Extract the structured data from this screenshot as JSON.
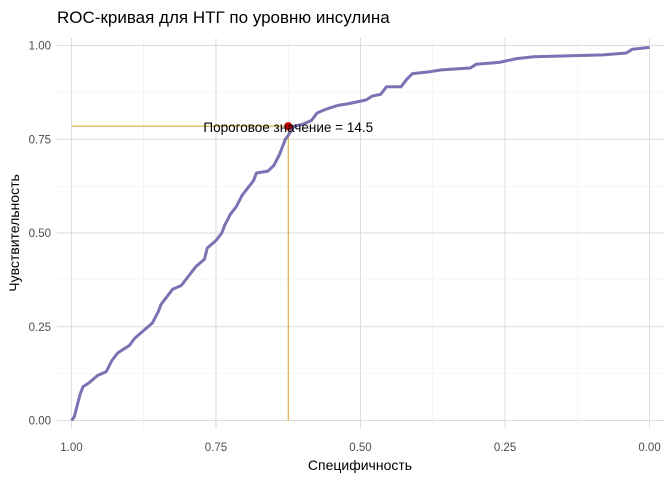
{
  "chart_data": {
    "type": "line",
    "title": "ROC-кривая для  НТГ по уровню инсулина",
    "xlabel": "Специфичность",
    "ylabel": "Чувствительность",
    "x_reversed": true,
    "xlim": [
      1.025,
      -0.025
    ],
    "ylim": [
      -0.02,
      1.02
    ],
    "x_ticks": [
      1.0,
      0.75,
      0.5,
      0.25,
      0.0
    ],
    "x_tick_labels": [
      "1.00",
      "0.75",
      "0.50",
      "0.25",
      "0.00"
    ],
    "y_ticks": [
      0.0,
      0.25,
      0.5,
      0.75,
      1.0
    ],
    "y_tick_labels": [
      "0.00",
      "0.25",
      "0.50",
      "0.75",
      "1.00"
    ],
    "grid": true,
    "legend": "none",
    "series": [
      {
        "color": "#7b72b4",
        "points": [
          [
            1.0,
            0.0
          ],
          [
            0.995,
            0.01
          ],
          [
            0.99,
            0.04
          ],
          [
            0.985,
            0.07
          ],
          [
            0.98,
            0.09
          ],
          [
            0.97,
            0.1
          ],
          [
            0.955,
            0.12
          ],
          [
            0.94,
            0.13
          ],
          [
            0.93,
            0.16
          ],
          [
            0.92,
            0.18
          ],
          [
            0.9,
            0.2
          ],
          [
            0.89,
            0.22
          ],
          [
            0.875,
            0.24
          ],
          [
            0.86,
            0.26
          ],
          [
            0.85,
            0.29
          ],
          [
            0.845,
            0.31
          ],
          [
            0.835,
            0.33
          ],
          [
            0.825,
            0.35
          ],
          [
            0.81,
            0.36
          ],
          [
            0.8,
            0.38
          ],
          [
            0.785,
            0.41
          ],
          [
            0.77,
            0.43
          ],
          [
            0.765,
            0.46
          ],
          [
            0.75,
            0.48
          ],
          [
            0.74,
            0.5
          ],
          [
            0.735,
            0.52
          ],
          [
            0.725,
            0.55
          ],
          [
            0.715,
            0.57
          ],
          [
            0.705,
            0.6
          ],
          [
            0.695,
            0.62
          ],
          [
            0.685,
            0.64
          ],
          [
            0.68,
            0.66
          ],
          [
            0.66,
            0.665
          ],
          [
            0.65,
            0.68
          ],
          [
            0.64,
            0.71
          ],
          [
            0.63,
            0.75
          ],
          [
            0.625,
            0.76
          ],
          [
            0.615,
            0.785
          ],
          [
            0.6,
            0.79
          ],
          [
            0.585,
            0.8
          ],
          [
            0.575,
            0.82
          ],
          [
            0.56,
            0.83
          ],
          [
            0.54,
            0.84
          ],
          [
            0.52,
            0.845
          ],
          [
            0.49,
            0.855
          ],
          [
            0.48,
            0.865
          ],
          [
            0.465,
            0.87
          ],
          [
            0.455,
            0.89
          ],
          [
            0.43,
            0.89
          ],
          [
            0.42,
            0.91
          ],
          [
            0.41,
            0.925
          ],
          [
            0.38,
            0.93
          ],
          [
            0.36,
            0.935
          ],
          [
            0.31,
            0.94
          ],
          [
            0.3,
            0.95
          ],
          [
            0.26,
            0.955
          ],
          [
            0.23,
            0.965
          ],
          [
            0.2,
            0.97
          ],
          [
            0.08,
            0.975
          ],
          [
            0.04,
            0.98
          ],
          [
            0.03,
            0.99
          ],
          [
            0.0,
            0.995
          ]
        ]
      }
    ],
    "threshold": {
      "label": "Пороговое значение = 14.5",
      "specificity": 0.625,
      "sensitivity": 0.785,
      "point_color": "#cc0000",
      "line_color": "#d4a017"
    }
  }
}
